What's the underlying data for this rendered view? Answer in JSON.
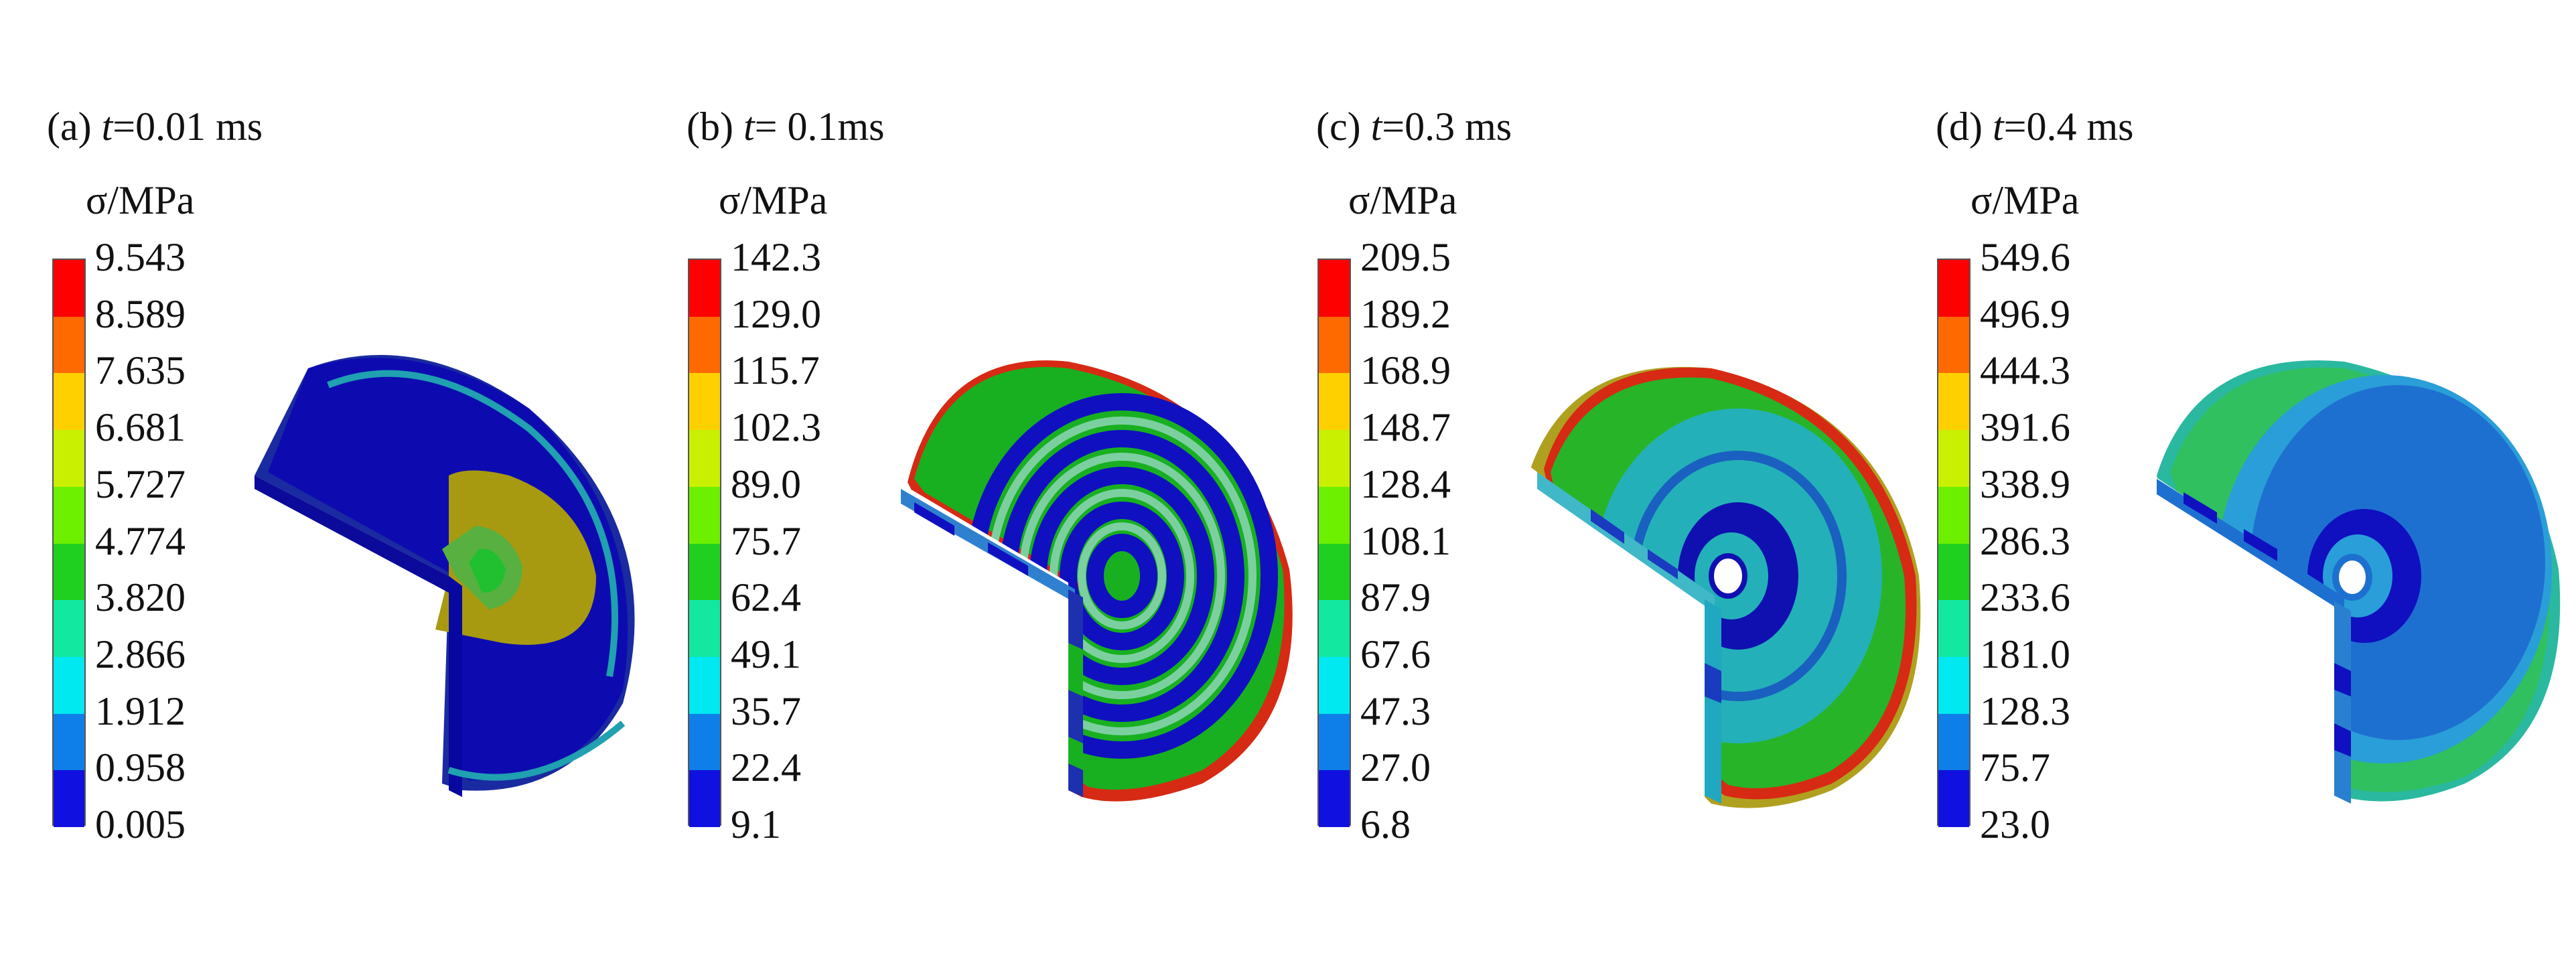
{
  "colors": {
    "scale": [
      "#ff0000",
      "#ff6a00",
      "#ffd000",
      "#c8f000",
      "#6cf000",
      "#20d020",
      "#12e8a0",
      "#00e8f0",
      "#0e7fe8",
      "#1010e0"
    ],
    "background": "#ffffff"
  },
  "panels": [
    {
      "prefix": "(a) ",
      "t_var": "t",
      "t_value": "=0.01 ms",
      "unit": "σ/MPa",
      "ticks": [
        "9.543",
        "8.589",
        "7.635",
        "6.681",
        "5.727",
        "4.774",
        "3.820",
        "2.866",
        "1.912",
        "0.958",
        "0.005"
      ]
    },
    {
      "prefix": "(b) ",
      "t_var": "t",
      "t_value": "= 0.1ms",
      "unit": "σ/MPa",
      "ticks": [
        "142.3",
        "129.0",
        "115.7",
        "102.3",
        "89.0",
        "75.7",
        "62.4",
        "49.1",
        "35.7",
        "22.4",
        "9.1"
      ]
    },
    {
      "prefix": "(c) ",
      "t_var": "t",
      "t_value": "=0.3 ms",
      "unit": "σ/MPa",
      "ticks": [
        "209.5",
        "189.2",
        "168.9",
        "148.7",
        "128.4",
        "108.1",
        "87.9",
        "67.6",
        "47.3",
        "27.0",
        "6.8"
      ]
    },
    {
      "prefix": "(d) ",
      "t_var": "t",
      "t_value": "=0.4 ms",
      "unit": "σ/MPa",
      "ticks": [
        "549.6",
        "496.9",
        "444.3",
        "391.6",
        "338.9",
        "286.3",
        "233.6",
        "181.0",
        "128.3",
        "75.7",
        "23.0"
      ]
    }
  ]
}
